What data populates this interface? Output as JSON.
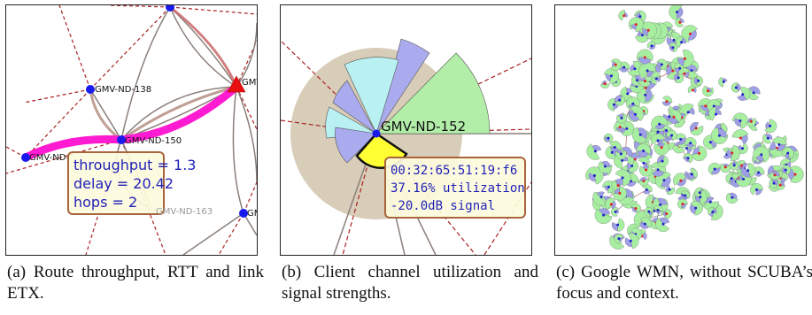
{
  "panel_a": {
    "nodes": {
      "n138": "GMV-ND-138",
      "n150": "GMV-ND-150",
      "nleft": "GMV-ND-",
      "n163": "GMV-ND-163",
      "nright": "GMV-",
      "nbottomright": "GMV"
    },
    "tooltip": {
      "line1": "throughput = 1.3",
      "line2": "delay = 20.42",
      "line3": "hops = 2"
    },
    "colors": {
      "route": "#ff1bd1",
      "node": "#1a1aee",
      "gateway": "#e81010",
      "tooltip_border": "#a8643a",
      "tooltip_fill": "#fdfbdc"
    }
  },
  "panel_b": {
    "node_label": "GMV-ND-152",
    "tooltip": {
      "line1": "00:32:65:51:19:f6",
      "line2": "37.16% utilization",
      "line3": "-20.0dB signal"
    },
    "colors": {
      "halo": "#d8cdb8",
      "green": "#b2eea8",
      "cyan": "#b9f0f2",
      "purple": "#aaaaee",
      "yellow": "#ffff33"
    }
  },
  "panel_c": {
    "colors": {
      "green": "#a8eea0",
      "purple": "#9f9fe6",
      "red": "#dd2222",
      "blue": "#2222cc"
    }
  },
  "captions": {
    "a": "(a) Route throughput, RTT and link ETX.",
    "b": "(b) Client channel utilization and signal strengths.",
    "c": "(c) Google WMN, without SCUBA’s focus and context."
  }
}
